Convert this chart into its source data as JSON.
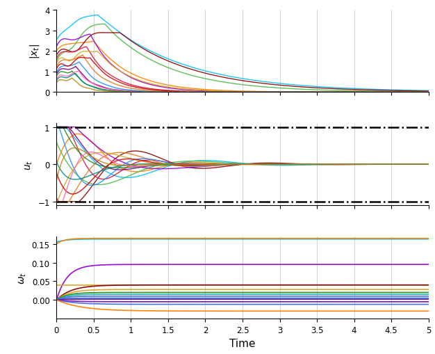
{
  "xlabel": "Time",
  "ylabel1": "$|x_t|$",
  "ylabel2": "$u_t$",
  "ylabel3": "$\\omega_t$",
  "t_end": 5.0,
  "dt": 0.005,
  "xlim": [
    0,
    5
  ],
  "ylim1": [
    0,
    4
  ],
  "ylim2": [
    -1.1,
    1.1
  ],
  "ylim3": [
    -0.05,
    0.17
  ],
  "yticks1": [
    0,
    1,
    2,
    3,
    4
  ],
  "yticks2": [
    -1,
    0,
    1
  ],
  "yticks3": [
    0,
    0.05,
    0.1,
    0.15
  ],
  "xticks": [
    0,
    0.5,
    1,
    1.5,
    2,
    2.5,
    3,
    3.5,
    4,
    4.5,
    5
  ],
  "xticklabels": [
    "0",
    "0.5",
    "1",
    "1.5",
    "2",
    "2.5",
    "3",
    "3.5",
    "4",
    "4.5",
    "5"
  ]
}
